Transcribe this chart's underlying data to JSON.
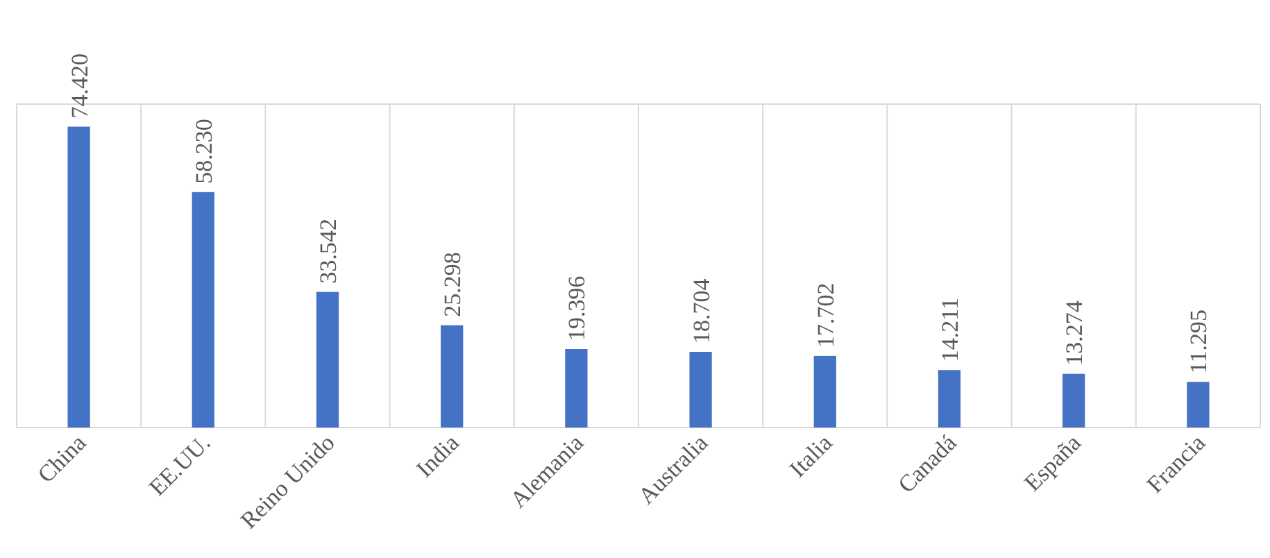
{
  "chart_data": {
    "type": "bar",
    "categories": [
      "China",
      "EE.UU.",
      "Reino Unido",
      "India",
      "Alemania",
      "Australia",
      "Italia",
      "Canadá",
      "España",
      "Francia"
    ],
    "values": [
      74420,
      58230,
      33542,
      25298,
      19396,
      18704,
      17702,
      14211,
      13274,
      11295
    ],
    "value_labels": [
      "74.420",
      "58.230",
      "33.542",
      "25.298",
      "19.396",
      "18.704",
      "17.702",
      "14.211",
      "13.274",
      "11.295"
    ],
    "color": "#4472c4",
    "ylim": [
      0,
      80000
    ],
    "grid": "x",
    "tick_labels": "x"
  }
}
